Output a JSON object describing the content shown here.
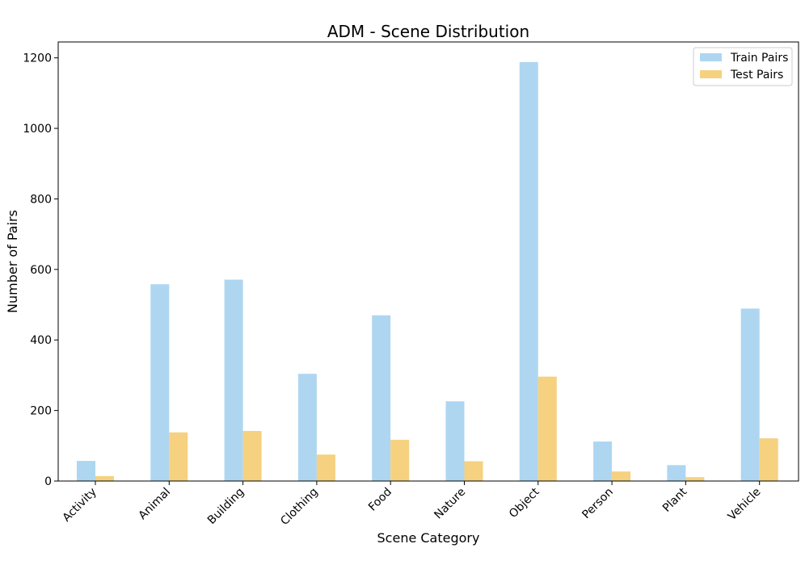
{
  "chart_data": {
    "type": "bar",
    "title": "ADM - Scene Distribution",
    "xlabel": "Scene Category",
    "ylabel": "Number of Pairs",
    "categories": [
      "Activity",
      "Animal",
      "Building",
      "Clothing",
      "Food",
      "Nature",
      "Object",
      "Person",
      "Plant",
      "Vehicle"
    ],
    "series": [
      {
        "name": "Train Pairs",
        "color": "#aed6f1",
        "values": [
          57,
          558,
          571,
          304,
          470,
          226,
          1188,
          112,
          45,
          489
        ]
      },
      {
        "name": "Test Pairs",
        "color": "#f5d180",
        "values": [
          14,
          138,
          142,
          75,
          117,
          56,
          296,
          27,
          11,
          121
        ]
      }
    ],
    "ylim": [
      0,
      1245
    ],
    "yticks": [
      0,
      200,
      400,
      600,
      800,
      1000,
      1200
    ],
    "legend_position": "top-right",
    "grid": false
  }
}
